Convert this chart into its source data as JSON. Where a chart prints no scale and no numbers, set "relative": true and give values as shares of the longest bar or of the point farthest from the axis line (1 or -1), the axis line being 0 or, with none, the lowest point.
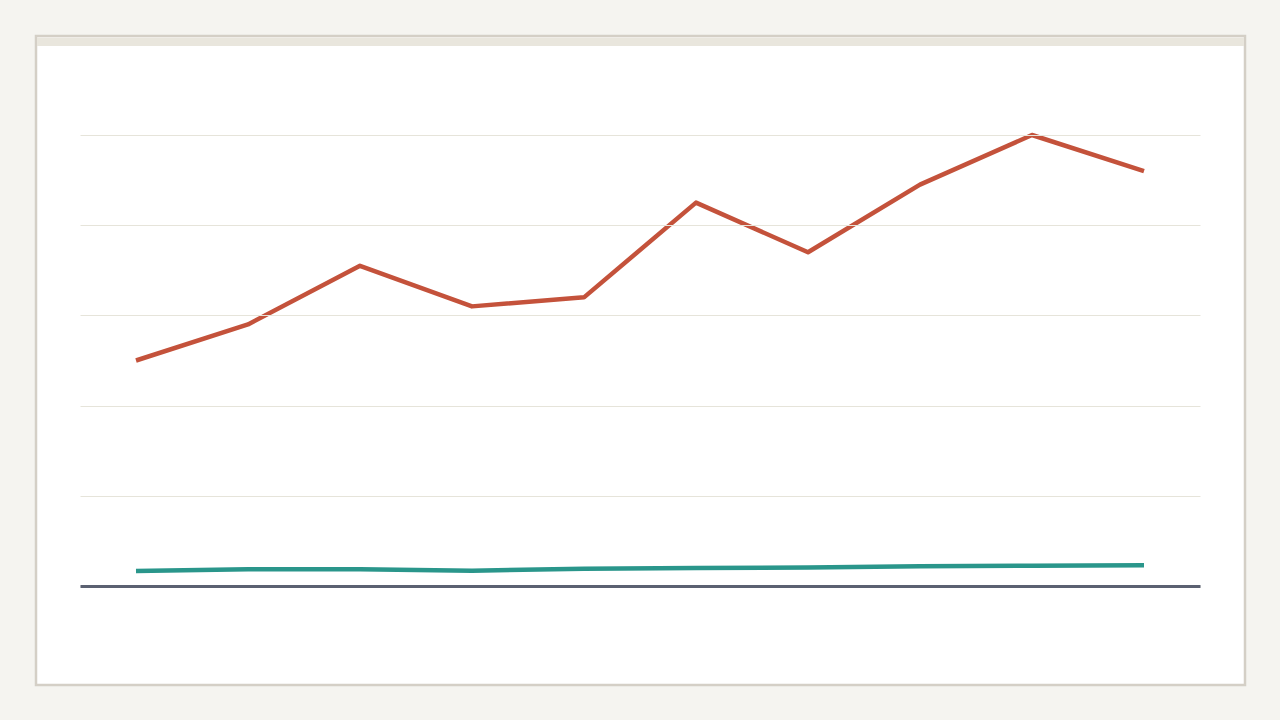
{
  "chart_data": {
    "type": "line",
    "relative": true,
    "categories": [
      null,
      null,
      null,
      null,
      null,
      null,
      null,
      null,
      null,
      null
    ],
    "series": [
      {
        "color": "#c4523b",
        "values": [
          0.5,
          0.58,
          0.71,
          0.62,
          0.64,
          0.85,
          0.74,
          0.89,
          1,
          0.92
        ]
      },
      {
        "color": "#2a968b",
        "values": [
          0.033,
          0.037,
          0.037,
          0.034,
          0.038,
          0.04,
          0.041,
          0.044,
          0.045,
          0.046
        ]
      }
    ],
    "grid": "y",
    "legend": false,
    "marker": "none",
    "line_style": "solid"
  }
}
